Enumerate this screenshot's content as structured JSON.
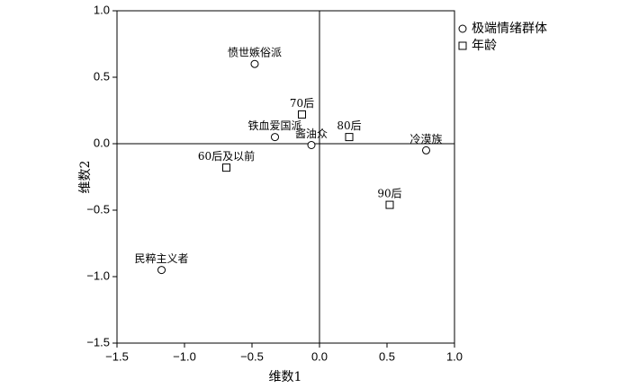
{
  "chart_data": {
    "type": "scatter",
    "x_label": "维数1",
    "y_label": "维数2",
    "xlim": [
      -1.5,
      1.0
    ],
    "ylim": [
      -1.5,
      1.0
    ],
    "xticks": [
      {
        "value": -1.5,
        "label": "−1.5"
      },
      {
        "value": -1.0,
        "label": "−1.0"
      },
      {
        "value": -0.5,
        "label": "−0.5"
      },
      {
        "value": 0,
        "label": "0.0"
      },
      0.5,
      {
        "value": 1.0,
        "label": "1.0"
      }
    ],
    "yticks": [
      {
        "value": -1.5,
        "label": "−1.5"
      },
      {
        "value": -1.0,
        "label": "−1.0"
      },
      {
        "value": -0.5,
        "label": "−0.5"
      },
      {
        "value": 0,
        "label": "0.0"
      },
      0.5,
      {
        "value": 1.0,
        "label": "1.0"
      }
    ],
    "series": [
      {
        "name": "极端情绪群体",
        "marker": "circle",
        "color": "#000000",
        "labels": [
          "愤世嫉俗派",
          "铁血爱国派",
          "酱油众",
          "冷漠族",
          "民粹主义者"
        ],
        "x": [
          -0.48,
          -0.33,
          -0.06,
          0.79,
          -1.17
        ],
        "values": [
          0.6,
          0.05,
          -0.01,
          -0.05,
          -0.95
        ]
      },
      {
        "name": "年龄",
        "marker": "square",
        "color": "#000000",
        "labels": [
          "70后",
          "80后",
          "60后及以前",
          "90后"
        ],
        "x": [
          -0.13,
          0.22,
          -0.69,
          0.52
        ],
        "values": [
          0.22,
          0.05,
          -0.18,
          -0.46
        ]
      }
    ]
  }
}
